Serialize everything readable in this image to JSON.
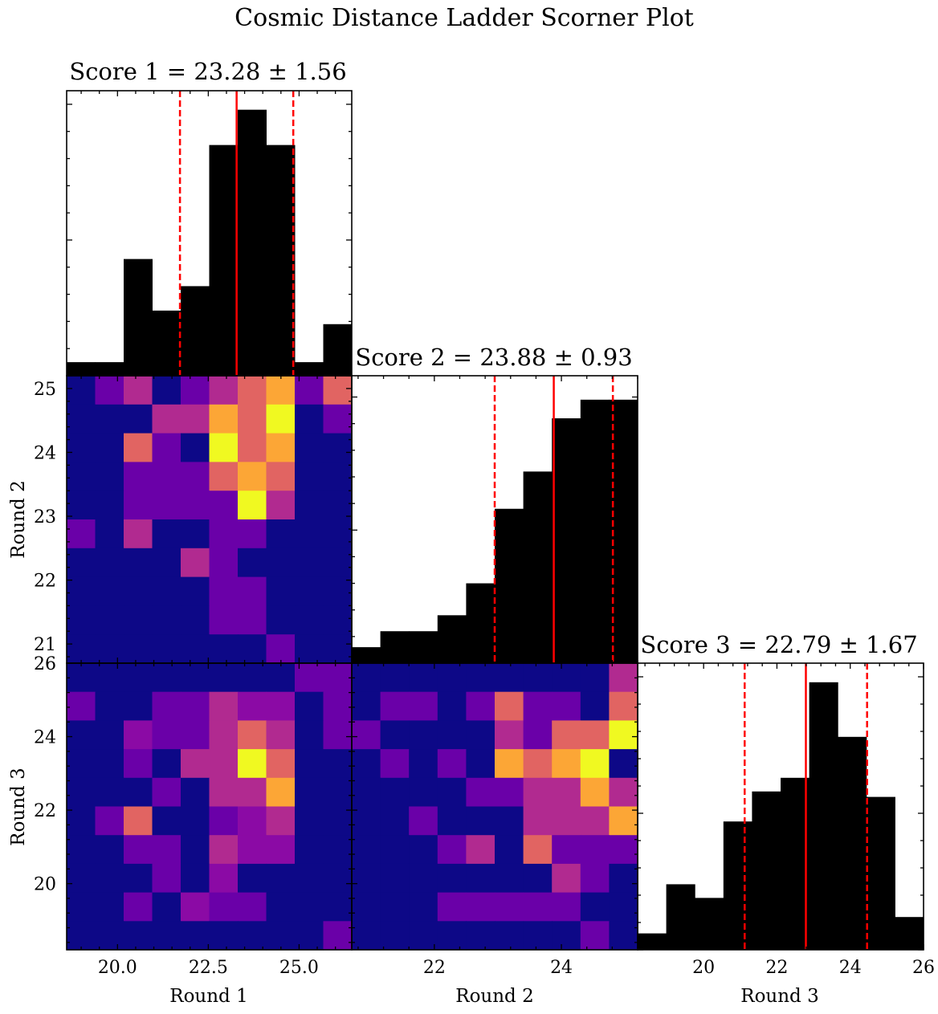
{
  "chart_data": {
    "type": "corner",
    "title": "Cosmic Distance Ladder Scorner Plot",
    "colormap": [
      "#0d0887",
      "#6a00a8",
      "#b12a90",
      "#e16462",
      "#fca636",
      "#f0f921"
    ],
    "colors": {
      "hist": "#000000",
      "median_line": "#ff0000",
      "quantile_line": "#ff0000",
      "frame": "#000000"
    },
    "variables": [
      {
        "name": "Round 1",
        "range": [
          18.6,
          26.45
        ],
        "ticks": [
          20.0,
          22.5,
          25.0
        ],
        "tick_labels": [
          "20.0",
          "22.5",
          "25.0"
        ]
      },
      {
        "name": "Round 2",
        "range": [
          20.7,
          25.2
        ],
        "ticks": [
          21,
          22,
          23,
          24,
          25
        ],
        "tick_labels": [
          "21",
          "22",
          "23",
          "24",
          "25"
        ],
        "x_ticks": [
          22,
          24
        ],
        "x_tick_labels": [
          "22",
          "24"
        ]
      },
      {
        "name": "Round 3",
        "range": [
          18.2,
          26.0
        ],
        "ticks": [
          20,
          22,
          24,
          26
        ],
        "tick_labels": [
          "20",
          "22",
          "24",
          "26"
        ]
      }
    ],
    "diagonal": [
      {
        "label": "Score 1 = 23.28 ± 1.56",
        "median": 23.28,
        "q_low": 21.72,
        "q_high": 24.84,
        "ymax": 10.5,
        "bins": [
          18.6,
          19.385,
          20.17,
          20.955,
          21.74,
          22.525,
          23.31,
          24.095,
          24.88,
          25.665,
          26.45
        ],
        "counts": [
          0.5,
          0.5,
          4.3,
          2.4,
          3.3,
          8.5,
          9.8,
          8.5,
          0.5,
          1.9
        ]
      },
      {
        "label": "Score 2 = 23.88 ± 0.93",
        "median": 23.88,
        "q_low": 22.95,
        "q_high": 24.81,
        "ymax": 10.8,
        "bins": [
          20.7,
          21.15,
          21.6,
          22.05,
          22.5,
          22.95,
          23.4,
          23.85,
          24.3,
          24.75,
          25.2
        ],
        "counts": [
          0.6,
          1.2,
          1.2,
          1.8,
          3.0,
          5.8,
          7.2,
          9.2,
          9.9,
          9.9
        ]
      },
      {
        "label": "Score 3 = 22.79 ± 1.67",
        "median": 22.79,
        "q_low": 21.12,
        "q_high": 24.46,
        "ymax": 10.5,
        "bins": [
          18.2,
          18.98,
          19.76,
          20.54,
          21.32,
          22.1,
          22.88,
          23.66,
          24.44,
          25.22,
          26.0
        ],
        "counts": [
          0.6,
          2.4,
          1.9,
          4.7,
          5.8,
          6.3,
          9.8,
          7.8,
          5.6,
          1.2
        ]
      }
    ],
    "hist2d": [
      {
        "x_var": 0,
        "y_var": 1,
        "nx": 10,
        "ny": 10,
        "rows_top_to_bottom": [
          [
            0,
            1,
            2,
            0,
            1,
            2,
            3,
            4,
            1,
            3
          ],
          [
            0,
            0,
            0,
            2,
            2,
            4,
            3,
            5,
            0,
            1
          ],
          [
            0,
            0,
            3,
            1,
            0,
            5,
            3,
            4,
            0,
            0
          ],
          [
            0,
            0,
            1,
            1,
            1,
            3,
            4,
            3,
            0,
            0
          ],
          [
            0,
            0,
            1,
            1,
            1,
            1,
            5,
            2,
            0,
            0
          ],
          [
            1,
            0,
            2,
            0,
            0,
            1,
            1,
            0,
            0,
            0
          ],
          [
            0,
            0,
            0,
            0,
            2,
            1,
            0,
            0,
            0,
            0
          ],
          [
            0,
            0,
            0,
            0,
            0,
            1,
            1,
            0,
            0,
            0
          ],
          [
            0,
            0,
            0,
            0,
            0,
            1,
            1,
            0,
            0,
            0
          ],
          [
            0,
            0,
            0,
            0,
            0,
            0,
            0,
            1,
            0,
            0
          ]
        ]
      },
      {
        "x_var": 0,
        "y_var": 2,
        "nx": 10,
        "ny": 10,
        "rows_top_to_bottom": [
          [
            0,
            0,
            0,
            0,
            0,
            0,
            0,
            0,
            1,
            1
          ],
          [
            1,
            0,
            0,
            1,
            1,
            2,
            1.5,
            1.5,
            0,
            1
          ],
          [
            0,
            0,
            1.5,
            1,
            1,
            2,
            3,
            2,
            0,
            1
          ],
          [
            0,
            0,
            1,
            0,
            2,
            2,
            5,
            3,
            0,
            0
          ],
          [
            0,
            0,
            0,
            1,
            0,
            2,
            2,
            4,
            0,
            0
          ],
          [
            0,
            1,
            3,
            0,
            0,
            1,
            1.5,
            2,
            0,
            0
          ],
          [
            0,
            0,
            1,
            1,
            0,
            2,
            1.5,
            1.5,
            0,
            0
          ],
          [
            0,
            0,
            0,
            1,
            0,
            1.5,
            0,
            0,
            0,
            0
          ],
          [
            0,
            0,
            1,
            0,
            1.5,
            1,
            1,
            0,
            0,
            0
          ],
          [
            0,
            0,
            0,
            0,
            0,
            0,
            0,
            0,
            0,
            1
          ]
        ]
      },
      {
        "x_var": 1,
        "y_var": 2,
        "nx": 10,
        "ny": 10,
        "rows_top_to_bottom": [
          [
            0,
            0,
            0,
            0,
            0,
            0,
            0,
            0,
            0,
            2
          ],
          [
            0,
            1,
            1,
            0,
            1,
            3,
            1,
            1,
            0,
            3
          ],
          [
            1,
            0,
            0,
            0,
            0,
            2,
            1,
            3,
            3,
            5
          ],
          [
            0,
            1,
            0,
            1,
            0,
            4,
            3,
            4,
            5,
            0
          ],
          [
            0,
            0,
            0,
            0,
            1,
            1,
            2,
            2,
            4,
            2
          ],
          [
            0,
            0,
            1,
            0,
            0,
            0,
            2,
            2,
            2,
            4
          ],
          [
            0,
            0,
            0,
            1,
            2,
            0,
            3,
            1,
            1,
            1
          ],
          [
            0,
            0,
            0,
            0,
            0,
            0,
            0,
            2,
            1,
            0
          ],
          [
            0,
            0,
            0,
            1,
            1,
            1,
            1,
            1,
            0,
            0
          ],
          [
            0,
            0,
            0,
            0,
            0,
            0,
            0,
            0,
            1,
            0
          ]
        ]
      }
    ]
  }
}
